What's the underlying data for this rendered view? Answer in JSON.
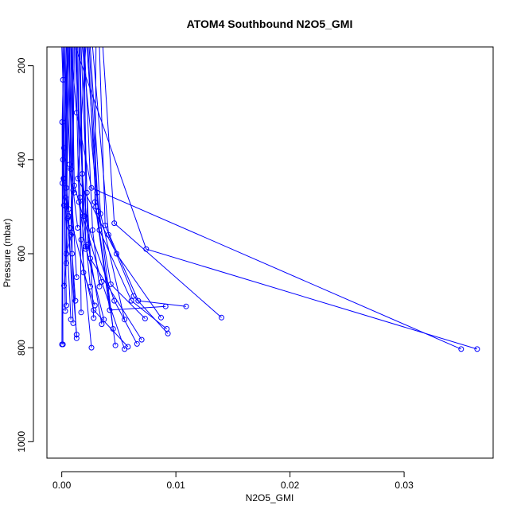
{
  "chart_data": {
    "type": "line",
    "title": "ATOM4 Southbound N2O5_GMI",
    "xlabel": "N2O5_GMI",
    "ylabel": "Pressure (mbar)",
    "xlim": [
      -0.0013,
      0.0378
    ],
    "ylim": [
      1035,
      160
    ],
    "y_reversed": true,
    "xticks": [
      0.0,
      0.01,
      0.02,
      0.03
    ],
    "xtick_labels": [
      "0.00",
      "0.01",
      "0.02",
      "0.03"
    ],
    "yticks": [
      200,
      400,
      600,
      800,
      1000
    ],
    "ytick_labels": [
      "200",
      "400",
      "600",
      "800",
      "1000"
    ],
    "series_color": "#0000ff",
    "marker": "open-circle",
    "grid": false,
    "legend": "none",
    "profiles": [
      {
        "x": [
          0.00045,
          0.00032,
          0.0028,
          0.0058
        ],
        "y": [
          160,
          480,
          720,
          798
        ]
      },
      {
        "x": [
          0.0009,
          0.0011,
          0.0035,
          0.0055
        ],
        "y": [
          160,
          455,
          660,
          803
        ]
      },
      {
        "x": [
          0.0012,
          0.002,
          0.0046,
          0.0066
        ],
        "y": [
          160,
          520,
          700,
          792
        ]
      },
      {
        "x": [
          0.0015,
          0.0018,
          0.0025,
          0.007
        ],
        "y": [
          160,
          430,
          610,
          783
        ]
      },
      {
        "x": [
          0.0018,
          0.0032,
          0.0043,
          0.0073
        ],
        "y": [
          160,
          510,
          665,
          738
        ]
      },
      {
        "x": [
          0.0021,
          0.0014,
          0.0048,
          0.0087
        ],
        "y": [
          160,
          440,
          600,
          736
        ]
      },
      {
        "x": [
          0.0024,
          0.0033,
          0.0061,
          0.0092
        ],
        "y": [
          160,
          550,
          700,
          760
        ]
      },
      {
        "x": [
          0.0027,
          0.0041,
          0.0063,
          0.0093
        ],
        "y": [
          160,
          560,
          690,
          770
        ]
      },
      {
        "x": [
          0.003,
          0.0029,
          0.0042,
          0.0091
        ],
        "y": [
          160,
          490,
          720,
          712
        ]
      },
      {
        "x": [
          0.0033,
          0.0038,
          0.0067,
          0.0109
        ],
        "y": [
          160,
          540,
          700,
          712
        ]
      },
      {
        "x": [
          0.0036,
          0.0046,
          0.014
        ],
        "y": [
          160,
          535,
          736
        ]
      },
      {
        "x": [
          0.0008,
          0.0013,
          0.0026,
          0.035
        ],
        "y": [
          160,
          300,
          460,
          803
        ]
      },
      {
        "x": [
          0.0012,
          0.0074,
          0.0364
        ],
        "y": [
          160,
          590,
          803
        ]
      },
      {
        "x": [
          0.0,
          0.0001,
          5e-05,
          2e-05
        ],
        "y": [
          160,
          230,
          450,
          793
        ]
      },
      {
        "x": [
          0.0002,
          3e-05,
          0.0001
        ],
        "y": [
          160,
          320,
          793
        ]
      },
      {
        "x": [
          0.0003,
          0.0002,
          0.0004
        ],
        "y": [
          160,
          375,
          710
        ]
      },
      {
        "x": [
          0.0005,
          0.0001,
          0.0003
        ],
        "y": [
          160,
          400,
          722
        ]
      },
      {
        "x": [
          0.0006,
          0.0002,
          0.0008
        ],
        "y": [
          160,
          440,
          740
        ]
      },
      {
        "x": [
          0.0007,
          0.0004,
          0.0013
        ],
        "y": [
          160,
          500,
          772
        ]
      },
      {
        "x": [
          0.0009,
          0.0006,
          0.001
        ],
        "y": [
          160,
          520,
          748
        ]
      },
      {
        "x": [
          0.001,
          0.0008,
          0.0013
        ],
        "y": [
          160,
          560,
          780
        ]
      },
      {
        "x": [
          0.0011,
          0.0009,
          0.0012
        ],
        "y": [
          160,
          600,
          700
        ]
      },
      {
        "x": [
          0.0013,
          0.0017,
          0.0026
        ],
        "y": [
          160,
          570,
          800
        ]
      },
      {
        "x": [
          0.0014,
          0.0016,
          0.0017
        ],
        "y": [
          160,
          480,
          725
        ]
      },
      {
        "x": [
          0.0016,
          0.0019,
          0.0029
        ],
        "y": [
          160,
          640,
          710
        ]
      },
      {
        "x": [
          0.0017,
          0.0022,
          0.0028
        ],
        "y": [
          160,
          470,
          737
        ]
      },
      {
        "x": [
          0.0019,
          0.0023,
          0.0035
        ],
        "y": [
          160,
          580,
          750
        ]
      },
      {
        "x": [
          0.002,
          0.0021,
          0.0037
        ],
        "y": [
          160,
          585,
          740
        ]
      },
      {
        "x": [
          0.0022,
          0.0031,
          0.0045
        ],
        "y": [
          160,
          470,
          760
        ]
      },
      {
        "x": [
          0.0023,
          0.003,
          0.0047
        ],
        "y": [
          160,
          500,
          795
        ]
      },
      {
        "x": [
          0.0025,
          0.0034,
          0.0055
        ],
        "y": [
          160,
          515,
          740
        ]
      },
      {
        "x": [
          0.0004,
          0.0007,
          0.0013
        ],
        "y": [
          160,
          410,
          650
        ]
      },
      {
        "x": [
          0.0006,
          0.0008,
          0.0011
        ],
        "y": [
          160,
          420,
          470
        ]
      },
      {
        "x": [
          0.0008,
          0.001,
          0.0014
        ],
        "y": [
          160,
          465,
          545
        ]
      },
      {
        "x": [
          0.0012,
          0.0015,
          0.0021
        ],
        "y": [
          160,
          490,
          590
        ]
      },
      {
        "x": [
          0.0016,
          0.0019,
          0.0025
        ],
        "y": [
          160,
          520,
          670
        ]
      },
      {
        "x": [
          0.002,
          0.0027,
          0.0033
        ],
        "y": [
          160,
          550,
          670
        ]
      },
      {
        "x": [
          0.0001,
          0.00015,
          0.0002
        ],
        "y": [
          160,
          440,
          497
        ]
      },
      {
        "x": [
          0.0002,
          0.0004,
          0.0006
        ],
        "y": [
          160,
          460,
          505
        ]
      },
      {
        "x": [
          0.0003,
          0.0005,
          0.0007
        ],
        "y": [
          160,
          525,
          545
        ]
      },
      {
        "x": [
          0.0005,
          0.0004,
          0.0002
        ],
        "y": [
          160,
          620,
          668
        ]
      },
      {
        "x": [
          0.0007,
          0.0009,
          0.0004
        ],
        "y": [
          160,
          555,
          600
        ]
      }
    ]
  }
}
